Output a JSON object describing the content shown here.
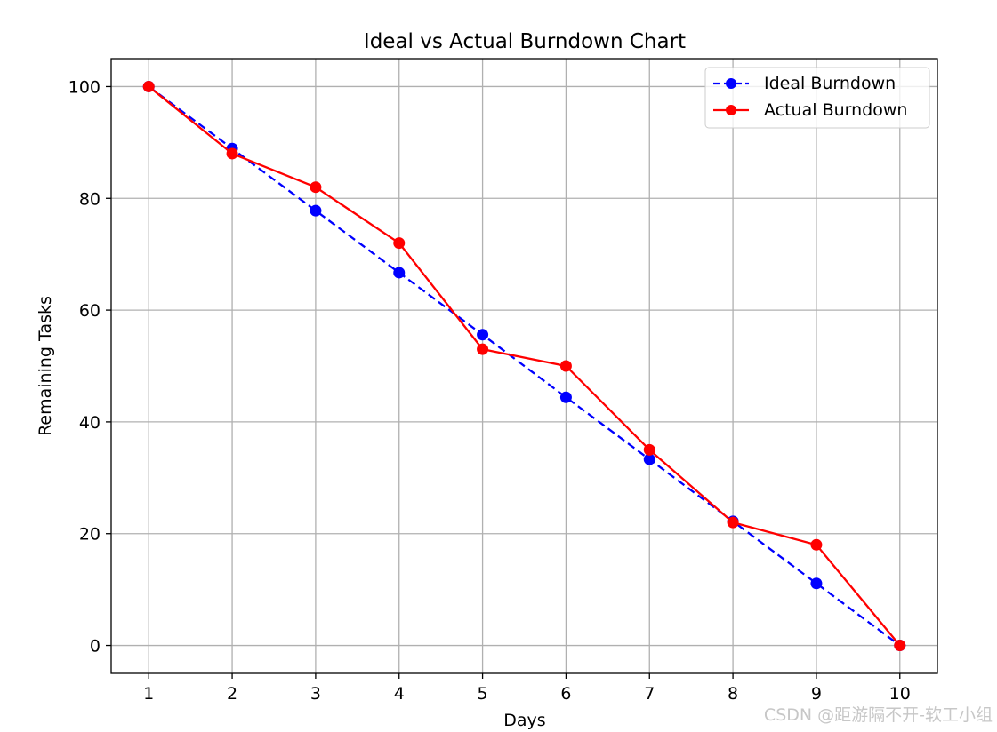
{
  "chart_data": {
    "type": "line",
    "title": "Ideal vs Actual Burndown Chart",
    "xlabel": "Days",
    "ylabel": "Remaining Tasks",
    "x": [
      1,
      2,
      3,
      4,
      5,
      6,
      7,
      8,
      9,
      10
    ],
    "xticks": [
      "1",
      "2",
      "3",
      "4",
      "5",
      "6",
      "7",
      "8",
      "9",
      "10"
    ],
    "yticks": [
      "0",
      "20",
      "40",
      "60",
      "80",
      "100"
    ],
    "xlim": [
      0.55,
      10.45
    ],
    "ylim": [
      -5,
      105
    ],
    "grid": true,
    "legend_position": "top-right",
    "series": [
      {
        "name": "Ideal Burndown",
        "values": [
          100,
          88.9,
          77.8,
          66.7,
          55.6,
          44.4,
          33.3,
          22.2,
          11.1,
          0
        ],
        "color": "#0000ff",
        "line_style": "dashed",
        "marker": "circle"
      },
      {
        "name": "Actual Burndown",
        "values": [
          100,
          88,
          82,
          72,
          53,
          50,
          35,
          22,
          18,
          0
        ],
        "color": "#ff0000",
        "line_style": "solid",
        "marker": "circle"
      }
    ]
  },
  "watermark": "CSDN @距游隔不开-软工小组"
}
